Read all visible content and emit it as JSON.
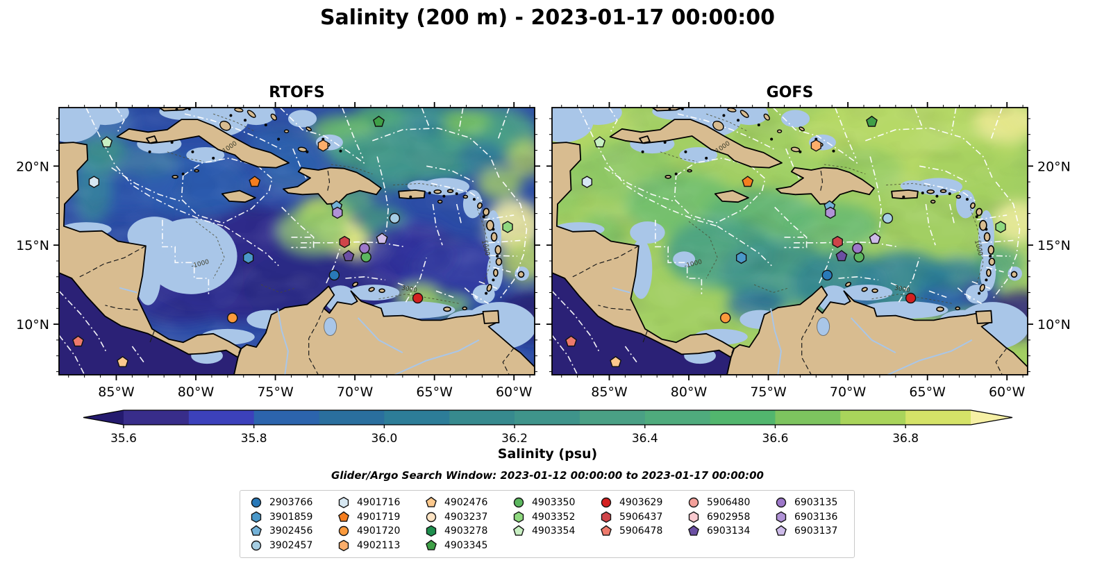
{
  "title": "Salinity (200 m) - 2023-01-17 00:00:00",
  "panels": [
    {
      "title": "RTOFS"
    },
    {
      "title": "GOFS"
    }
  ],
  "axes": {
    "lon_range": [
      -88.6,
      -58.7
    ],
    "lat_range": [
      6.8,
      23.7
    ],
    "lon_ticks": [
      {
        "v": -85,
        "label": "85°W"
      },
      {
        "v": -80,
        "label": "80°W"
      },
      {
        "v": -75,
        "label": "75°W"
      },
      {
        "v": -70,
        "label": "70°W"
      },
      {
        "v": -65,
        "label": "65°W"
      },
      {
        "v": -60,
        "label": "60°W"
      }
    ],
    "lat_ticks": [
      {
        "v": 20,
        "label": "20°N"
      },
      {
        "v": 15,
        "label": "15°N"
      },
      {
        "v": 10,
        "label": "10°N"
      }
    ]
  },
  "colorbar": {
    "label": "Salinity (psu)",
    "vmin": 35.6,
    "vmax": 36.9,
    "ticks": [
      {
        "v": 35.6,
        "label": "35.6"
      },
      {
        "v": 35.8,
        "label": "35.8"
      },
      {
        "v": 36.0,
        "label": "36.0"
      },
      {
        "v": 36.2,
        "label": "36.2"
      },
      {
        "v": 36.4,
        "label": "36.4"
      },
      {
        "v": 36.6,
        "label": "36.6"
      },
      {
        "v": 36.8,
        "label": "36.8"
      }
    ],
    "segment_colors": [
      "#382d8a",
      "#3c41bb",
      "#2c64ad",
      "#2a6f9e",
      "#2d7d98",
      "#378a8e",
      "#3f948b",
      "#4aa085",
      "#4fab7d",
      "#52b66e",
      "#7dc45f",
      "#a9d45b",
      "#d5e368"
    ],
    "under_color": "#241a6e",
    "over_color": "#f6f0a5"
  },
  "search_window": "Glider/Argo Search Window: 2023-01-12 00:00:00 to 2023-01-17 00:00:00",
  "floats": [
    {
      "wmo": "2903766",
      "shape": "circle",
      "color": "#2979b9",
      "lon": -71.3,
      "lat": 13.1
    },
    {
      "wmo": "3901859",
      "shape": "hexagon",
      "color": "#4a98c9",
      "lon": -76.7,
      "lat": 14.2
    },
    {
      "wmo": "3902456",
      "shape": "pentagon",
      "color": "#74b2d8",
      "lon": -71.15,
      "lat": 17.45
    },
    {
      "wmo": "3902457",
      "shape": "circle",
      "color": "#a6cee3",
      "lon": -67.5,
      "lat": 16.7
    },
    {
      "wmo": "4901716",
      "shape": "hexagon",
      "color": "#d6e7f2",
      "lon": -86.4,
      "lat": 19.0
    },
    {
      "wmo": "4901719",
      "shape": "pentagon",
      "color": "#f57e1f",
      "lon": -76.3,
      "lat": 19.0
    },
    {
      "wmo": "4901720",
      "shape": "circle",
      "color": "#fb9a3c",
      "lon": -77.7,
      "lat": 10.4
    },
    {
      "wmo": "4902113",
      "shape": "hexagon",
      "color": "#fcae6b",
      "lon": -72.0,
      "lat": 21.3
    },
    {
      "wmo": "4902476",
      "shape": "pentagon",
      "color": "#fdc98d",
      "lon": -84.6,
      "lat": 7.6
    },
    {
      "wmo": "4903237",
      "shape": "circle",
      "color": "#fde3c3",
      "lon": null,
      "lat": null
    },
    {
      "wmo": "4903278",
      "shape": "hexagon",
      "color": "#1e8f4e",
      "lon": null,
      "lat": null
    },
    {
      "wmo": "4903345",
      "shape": "pentagon",
      "color": "#3fa047",
      "lon": -68.5,
      "lat": 22.8
    },
    {
      "wmo": "4903350",
      "shape": "circle",
      "color": "#5cb75f",
      "lon": -69.3,
      "lat": 14.25
    },
    {
      "wmo": "4903352",
      "shape": "hexagon",
      "color": "#8fd97f",
      "lon": -60.4,
      "lat": 16.15
    },
    {
      "wmo": "4903354",
      "shape": "pentagon",
      "color": "#c8efc2",
      "lon": -85.6,
      "lat": 21.5
    },
    {
      "wmo": "4903629",
      "shape": "circle",
      "color": "#d42020",
      "lon": -66.05,
      "lat": 11.65
    },
    {
      "wmo": "5906437",
      "shape": "hexagon",
      "color": "#cf4449",
      "lon": -70.65,
      "lat": 15.2
    },
    {
      "wmo": "5906478",
      "shape": "pentagon",
      "color": "#ee7a6c",
      "lon": -87.4,
      "lat": 8.9
    },
    {
      "wmo": "5906480",
      "shape": "circle",
      "color": "#f4a09a",
      "lon": null,
      "lat": null
    },
    {
      "wmo": "6902958",
      "shape": "hexagon",
      "color": "#f9cad0",
      "lon": null,
      "lat": null
    },
    {
      "wmo": "6903134",
      "shape": "pentagon",
      "color": "#6b4fa3",
      "lon": -70.4,
      "lat": 14.3
    },
    {
      "wmo": "6903135",
      "shape": "circle",
      "color": "#9d77c9",
      "lon": -69.4,
      "lat": 14.8
    },
    {
      "wmo": "6903136",
      "shape": "hexagon",
      "color": "#b092d6",
      "lon": -71.1,
      "lat": 17.05
    },
    {
      "wmo": "6903137",
      "shape": "pentagon",
      "color": "#cdbbe9",
      "lon": -68.3,
      "lat": 15.4
    }
  ],
  "contour_labels": [
    {
      "text": "1000",
      "lon": -77.8,
      "lat": 21.1,
      "rot": -35
    },
    {
      "text": "-1000",
      "lon": -79.7,
      "lat": 13.7,
      "rot": -15
    },
    {
      "text": "3000",
      "lon": -66.6,
      "lat": 12.1,
      "rot": 10
    },
    {
      "text": "1000",
      "lon": -61.9,
      "lat": 14.8,
      "rot": 75
    }
  ]
}
